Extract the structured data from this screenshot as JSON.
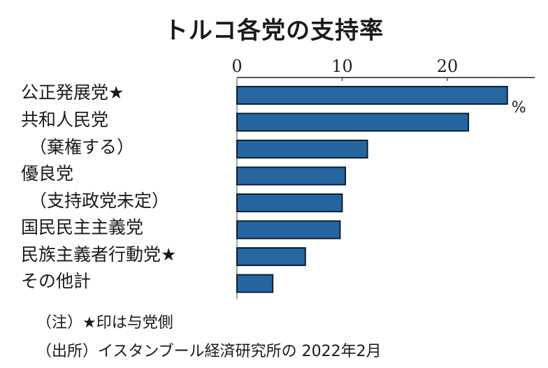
{
  "chart_data": {
    "type": "bar",
    "orientation": "horizontal",
    "title": "トルコ各党の支持率",
    "categories": [
      "公正発展党★",
      "共和人民党",
      "（棄権する）",
      "優良党",
      "（支持政党未定）",
      "国民民主主義党",
      "民族主義者行動党★",
      "その他計"
    ],
    "values": [
      25.7,
      22.0,
      12.4,
      10.3,
      10.0,
      9.8,
      6.5,
      3.4
    ],
    "unit": "%",
    "xlim": [
      0,
      28
    ],
    "xticks": [
      0,
      10,
      20
    ],
    "xtick_labels": [
      "0",
      "10",
      "20"
    ],
    "axis_position": "top",
    "grid": false,
    "bar_color": "#2566a0",
    "bar_border_color": "#0d1f33"
  },
  "notes": {
    "note": "（注）★印は与党側",
    "source": "（出所）イスタンブール経済研究所の 2022年2月"
  }
}
